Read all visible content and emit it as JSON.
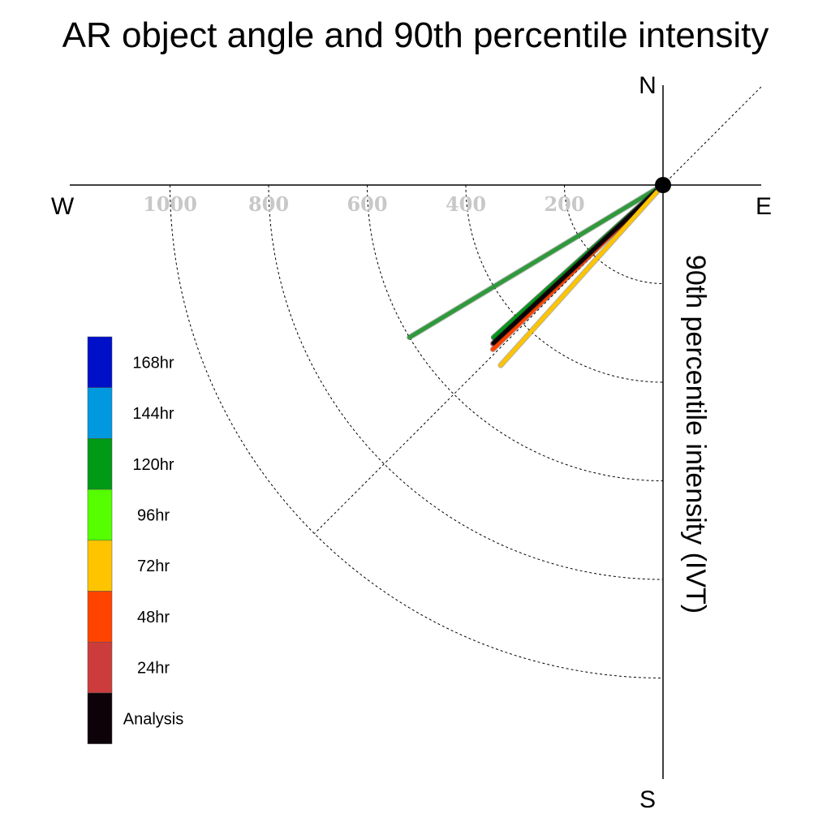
{
  "chart_data": {
    "type": "polar-vector",
    "title": "AR object angle and 90th percentile intensity",
    "ylabel": "90th percentile intensity (IVT)",
    "compass": {
      "north": "N",
      "south": "S",
      "east": "E",
      "west": "W"
    },
    "radial_ticks": [
      200,
      400,
      600,
      800,
      1000
    ],
    "radial_range": [
      0,
      1200
    ],
    "grid": true,
    "legend_position": "left",
    "legend": [
      {
        "label": "168hr",
        "color": "#0010c8"
      },
      {
        "label": "144hr",
        "color": "#0099e0"
      },
      {
        "label": "120hr",
        "color": "#009a17"
      },
      {
        "label": "96hr",
        "color": "#55ff00"
      },
      {
        "label": "72hr",
        "color": "#ffc400"
      },
      {
        "label": "48hr",
        "color": "#ff4400"
      },
      {
        "label": "24hr",
        "color": "#cc3c3c"
      },
      {
        "label": "Analysis",
        "color": "#0d0208"
      }
    ],
    "vectors": [
      {
        "series": "120hr",
        "angle_deg": 239,
        "intensity": 600,
        "color": "#2e9a3a"
      },
      {
        "series": "96hr",
        "angle_deg": 228,
        "intensity": 462,
        "color": "#55ff00"
      },
      {
        "series": "120hr",
        "angle_deg": 228,
        "intensity": 462,
        "color": "#009a17"
      },
      {
        "series": "24hr",
        "angle_deg": 227,
        "intensity": 472,
        "color": "#cc3c3c"
      },
      {
        "series": "48hr",
        "angle_deg": 226,
        "intensity": 480,
        "color": "#ff4400"
      },
      {
        "series": "Analysis",
        "angle_deg": 227,
        "intensity": 470,
        "color": "#0d0208"
      },
      {
        "series": "72hr",
        "angle_deg": 222,
        "intensity": 492,
        "color": "#ffc400"
      }
    ]
  }
}
